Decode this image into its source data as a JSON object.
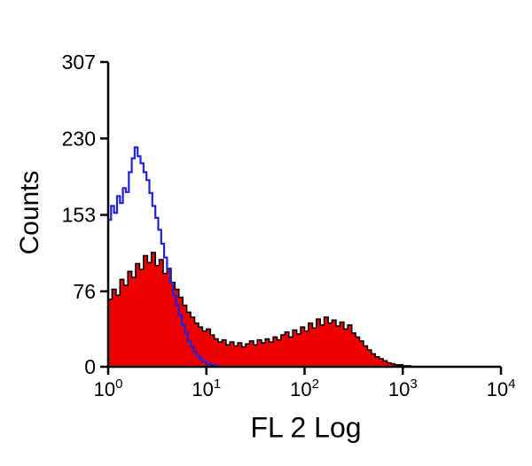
{
  "figure": {
    "background": "#ffffff",
    "axis_color": "#000000"
  },
  "chart_data": {
    "type": "area",
    "subtype": "flow-cytometry-histogram-overlay",
    "title": "",
    "xlabel": "FL 2 Log",
    "ylabel": "Counts",
    "xscale": "log10",
    "x_log_range": [
      0,
      4
    ],
    "ylim": [
      0,
      307
    ],
    "grid": false,
    "legend": "none",
    "y_ticks": [
      0,
      76,
      153,
      230,
      307
    ],
    "x_ticks": [
      {
        "log": 0,
        "base": "10",
        "exp": "0"
      },
      {
        "log": 1,
        "base": "10",
        "exp": "1"
      },
      {
        "log": 2,
        "base": "10",
        "exp": "2"
      },
      {
        "log": 3,
        "base": "10",
        "exp": "3"
      },
      {
        "log": 4,
        "base": "10",
        "exp": "4"
      }
    ],
    "series": [
      {
        "name": "red-filled-histogram",
        "filled": true,
        "fill": "#ee0000",
        "stroke": "#000000",
        "stroke_width": 1.6,
        "points": [
          [
            0.0,
            68
          ],
          [
            0.04,
            78
          ],
          [
            0.08,
            72
          ],
          [
            0.12,
            88
          ],
          [
            0.16,
            82
          ],
          [
            0.2,
            96
          ],
          [
            0.24,
            90
          ],
          [
            0.28,
            104
          ],
          [
            0.32,
            98
          ],
          [
            0.36,
            112
          ],
          [
            0.4,
            105
          ],
          [
            0.44,
            115
          ],
          [
            0.48,
            102
          ],
          [
            0.52,
            108
          ],
          [
            0.56,
            94
          ],
          [
            0.6,
            99
          ],
          [
            0.64,
            85
          ],
          [
            0.68,
            78
          ],
          [
            0.72,
            70
          ],
          [
            0.76,
            62
          ],
          [
            0.8,
            55
          ],
          [
            0.84,
            50
          ],
          [
            0.88,
            44
          ],
          [
            0.92,
            40
          ],
          [
            0.96,
            36
          ],
          [
            1.0,
            38
          ],
          [
            1.04,
            32
          ],
          [
            1.08,
            28
          ],
          [
            1.12,
            25
          ],
          [
            1.16,
            27
          ],
          [
            1.2,
            22
          ],
          [
            1.24,
            25
          ],
          [
            1.28,
            21
          ],
          [
            1.32,
            24
          ],
          [
            1.36,
            20
          ],
          [
            1.4,
            23
          ],
          [
            1.44,
            26
          ],
          [
            1.48,
            22
          ],
          [
            1.52,
            27
          ],
          [
            1.56,
            24
          ],
          [
            1.6,
            28
          ],
          [
            1.64,
            25
          ],
          [
            1.68,
            30
          ],
          [
            1.72,
            27
          ],
          [
            1.76,
            32
          ],
          [
            1.8,
            35
          ],
          [
            1.84,
            30
          ],
          [
            1.88,
            37
          ],
          [
            1.92,
            33
          ],
          [
            1.96,
            40
          ],
          [
            2.0,
            36
          ],
          [
            2.04,
            44
          ],
          [
            2.08,
            39
          ],
          [
            2.12,
            48
          ],
          [
            2.16,
            42
          ],
          [
            2.2,
            50
          ],
          [
            2.24,
            44
          ],
          [
            2.28,
            47
          ],
          [
            2.32,
            41
          ],
          [
            2.36,
            45
          ],
          [
            2.4,
            38
          ],
          [
            2.44,
            42
          ],
          [
            2.48,
            34
          ],
          [
            2.52,
            30
          ],
          [
            2.56,
            26
          ],
          [
            2.6,
            21
          ],
          [
            2.64,
            17
          ],
          [
            2.68,
            13
          ],
          [
            2.72,
            10
          ],
          [
            2.76,
            8
          ],
          [
            2.8,
            6
          ],
          [
            2.84,
            4
          ],
          [
            2.88,
            3
          ],
          [
            2.92,
            2
          ],
          [
            2.96,
            2
          ],
          [
            3.0,
            1
          ],
          [
            3.04,
            1
          ],
          [
            3.08,
            0
          ]
        ]
      },
      {
        "name": "blue-open-histogram",
        "filled": false,
        "fill": "none",
        "stroke": "#2222dd",
        "stroke_width": 2.2,
        "points": [
          [
            0.0,
            148
          ],
          [
            0.03,
            162
          ],
          [
            0.06,
            155
          ],
          [
            0.09,
            172
          ],
          [
            0.12,
            165
          ],
          [
            0.15,
            180
          ],
          [
            0.18,
            176
          ],
          [
            0.21,
            196
          ],
          [
            0.24,
            210
          ],
          [
            0.27,
            221
          ],
          [
            0.3,
            212
          ],
          [
            0.33,
            205
          ],
          [
            0.36,
            196
          ],
          [
            0.39,
            188
          ],
          [
            0.42,
            175
          ],
          [
            0.45,
            162
          ],
          [
            0.48,
            150
          ],
          [
            0.51,
            138
          ],
          [
            0.54,
            124
          ],
          [
            0.57,
            110
          ],
          [
            0.6,
            98
          ],
          [
            0.63,
            85
          ],
          [
            0.66,
            72
          ],
          [
            0.69,
            62
          ],
          [
            0.72,
            52
          ],
          [
            0.75,
            42
          ],
          [
            0.78,
            34
          ],
          [
            0.81,
            26
          ],
          [
            0.84,
            20
          ],
          [
            0.87,
            15
          ],
          [
            0.9,
            11
          ],
          [
            0.93,
            8
          ],
          [
            0.96,
            5
          ],
          [
            1.0,
            3
          ],
          [
            1.04,
            2
          ],
          [
            1.08,
            1
          ],
          [
            1.12,
            0
          ]
        ]
      }
    ]
  }
}
